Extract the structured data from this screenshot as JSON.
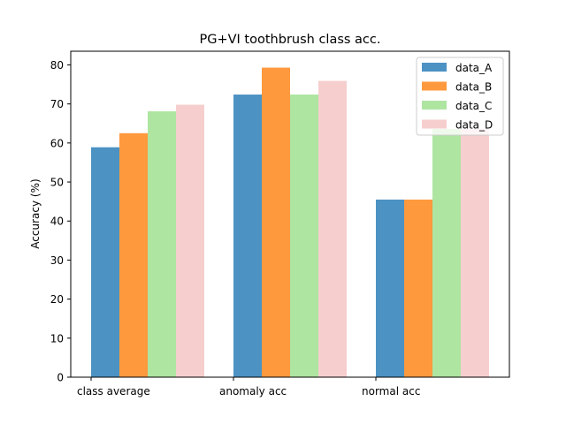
{
  "chart_data": {
    "type": "bar",
    "title": "PG+VI toothbrush class acc.",
    "xlabel": "",
    "ylabel": "Accuracy (%)",
    "ylim": [
      0,
      83.5
    ],
    "yticks": [
      0,
      10,
      20,
      30,
      40,
      50,
      60,
      70,
      80
    ],
    "grid": false,
    "legend_position": "top-right",
    "categories": [
      "class average",
      "anomaly acc",
      "normal acc"
    ],
    "series": [
      {
        "name": "data_A",
        "color": "#1f77b4",
        "values": [
          58.9,
          72.4,
          45.5
        ]
      },
      {
        "name": "data_B",
        "color": "#ff7f0e",
        "values": [
          62.5,
          79.3,
          45.5
        ]
      },
      {
        "name": "data_C",
        "color": "#98df8a",
        "values": [
          68.1,
          72.4,
          63.6
        ]
      },
      {
        "name": "data_D",
        "color": "#f4c2c2",
        "values": [
          69.8,
          75.9,
          63.6
        ]
      }
    ]
  }
}
